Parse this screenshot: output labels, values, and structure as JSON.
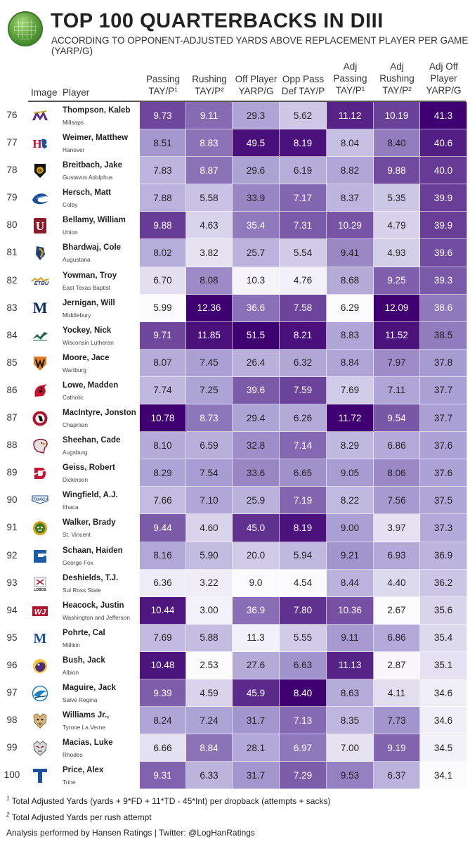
{
  "header": {
    "title": "TOP 100 QUARTERBACKS IN DIII",
    "subtitle": "ACCORDING TO OPPONENT-ADJUSTED YARDS ABOVE REPLACEMENT PLAYER PER GAME (YARP/G)"
  },
  "columns": {
    "image": "Image",
    "player": "Player",
    "passing": [
      "Passing",
      "TAY/P¹"
    ],
    "rushing": [
      "Rushing",
      "TAY/P²"
    ],
    "off_player": [
      "Off Player",
      "YARP/G"
    ],
    "opp_pass": [
      "Opp Pass",
      "Def TAY/P"
    ],
    "adj_passing": [
      "Adj",
      "Passing",
      "TAY/P¹"
    ],
    "adj_rushing": [
      "Adj",
      "Rushing",
      "TAY/P²"
    ],
    "adj_off": [
      "Adj Off",
      "Player",
      "YARP/G"
    ]
  },
  "footnotes": {
    "f1_mark": "1",
    "f1": "Total Adjusted Yards (yards + 9*FD + 11*TD - 45*Int) per dropback (attempts + sacks)",
    "f2_mark": "2",
    "f2": "Total Adjusted Yards per rush attempt",
    "credit": "Analysis performed by Hansen Ratings | Twitter: @LogHanRatings"
  },
  "colors": {
    "scale_low": "#fbfafd",
    "scale_high": "#3f0071",
    "text_dark": "#222222",
    "text_light": "#ffffff"
  },
  "chart_data": {
    "type": "table",
    "color_ranges": {
      "passing": [
        5.99,
        10.78
      ],
      "rushing": [
        2.53,
        12.36
      ],
      "off_player": [
        9.0,
        51.5
      ],
      "opp_pass": [
        4.54,
        8.4
      ],
      "adj_passing": [
        6.29,
        11.72
      ],
      "adj_rushing": [
        2.67,
        12.09
      ],
      "adj_off": [
        34.1,
        41.3
      ]
    },
    "rows": [
      {
        "rank": "76",
        "player": "Thompson, Kaleb",
        "school": "Millsaps",
        "logo_icon": "millsaps-logo-icon",
        "logo_color": "#5b2a86",
        "passing": "9.73",
        "rushing": "9.11",
        "off_player": "29.3",
        "opp_pass": "5.62",
        "adj_passing": "11.12",
        "adj_rushing": "10.19",
        "adj_off": "41.3"
      },
      {
        "rank": "77",
        "player": "Weimer, Matthew",
        "school": "Hanover",
        "logo_icon": "hanover-logo-icon",
        "logo_color": "#c8102e",
        "passing": "8.51",
        "rushing": "8.83",
        "off_player": "49.5",
        "opp_pass": "8.19",
        "adj_passing": "8.04",
        "adj_rushing": "8.40",
        "adj_off": "40.6"
      },
      {
        "rank": "78",
        "player": "Breitbach, Jake",
        "school": "Gustavus Adolphus",
        "logo_icon": "gustavus-logo-icon",
        "logo_color": "#111111",
        "passing": "7.83",
        "rushing": "8.87",
        "off_player": "29.6",
        "opp_pass": "6.19",
        "adj_passing": "8.82",
        "adj_rushing": "9.88",
        "adj_off": "40.0"
      },
      {
        "rank": "79",
        "player": "Hersch, Matt",
        "school": "Colby",
        "logo_icon": "colby-logo-icon",
        "logo_color": "#1b4f9c",
        "passing": "7.88",
        "rushing": "5.58",
        "off_player": "33.9",
        "opp_pass": "7.17",
        "adj_passing": "8.37",
        "adj_rushing": "5.35",
        "adj_off": "39.9"
      },
      {
        "rank": "80",
        "player": "Bellamy, William",
        "school": "Union",
        "logo_icon": "union-logo-icon",
        "logo_color": "#8a1c2b",
        "passing": "9.88",
        "rushing": "4.63",
        "off_player": "35.4",
        "opp_pass": "7.31",
        "adj_passing": "10.29",
        "adj_rushing": "4.79",
        "adj_off": "39.9"
      },
      {
        "rank": "81",
        "player": "Bhardwaj, Cole",
        "school": "Augustana",
        "logo_icon": "augustana-logo-icon",
        "logo_color": "#1d3f7a",
        "passing": "8.02",
        "rushing": "3.82",
        "off_player": "25.7",
        "opp_pass": "5.54",
        "adj_passing": "9.41",
        "adj_rushing": "4.93",
        "adj_off": "39.6"
      },
      {
        "rank": "82",
        "player": "Yowman, Troy",
        "school": "East Texas Baptist",
        "logo_icon": "etbu-logo-icon",
        "logo_color": "#1d2c6b",
        "passing": "6.70",
        "rushing": "8.08",
        "off_player": "10.3",
        "opp_pass": "4.76",
        "adj_passing": "8.68",
        "adj_rushing": "9.25",
        "adj_off": "39.3"
      },
      {
        "rank": "83",
        "player": "Jernigan, Will",
        "school": "Middlebury",
        "logo_icon": "middlebury-logo-icon",
        "logo_color": "#0d2c6c",
        "passing": "5.99",
        "rushing": "12.36",
        "off_player": "36.6",
        "opp_pass": "7.58",
        "adj_passing": "6.29",
        "adj_rushing": "12.09",
        "adj_off": "38.6"
      },
      {
        "rank": "84",
        "player": "Yockey, Nick",
        "school": "Wisconsin Lutheran",
        "logo_icon": "wisconsin-lutheran-logo-icon",
        "logo_color": "#1e6b45",
        "passing": "9.71",
        "rushing": "11.85",
        "off_player": "51.5",
        "opp_pass": "8.21",
        "adj_passing": "8.83",
        "adj_rushing": "11.52",
        "adj_off": "38.5"
      },
      {
        "rank": "85",
        "player": "Moore, Jace",
        "school": "Wartburg",
        "logo_icon": "wartburg-logo-icon",
        "logo_color": "#e07b24",
        "passing": "8.07",
        "rushing": "7.45",
        "off_player": "26.4",
        "opp_pass": "6.32",
        "adj_passing": "8.84",
        "adj_rushing": "7.97",
        "adj_off": "37.8"
      },
      {
        "rank": "86",
        "player": "Lowe, Madden",
        "school": "Catholic",
        "logo_icon": "catholic-logo-icon",
        "logo_color": "#c8102e",
        "passing": "7.74",
        "rushing": "7.25",
        "off_player": "39.6",
        "opp_pass": "7.59",
        "adj_passing": "7.69",
        "adj_rushing": "7.11",
        "adj_off": "37.7"
      },
      {
        "rank": "87",
        "player": "MacIntyre, Jonston",
        "school": "Chapman",
        "logo_icon": "chapman-logo-icon",
        "logo_color": "#b3122e",
        "passing": "10.78",
        "rushing": "8.73",
        "off_player": "29.4",
        "opp_pass": "6.26",
        "adj_passing": "11.72",
        "adj_rushing": "9.54",
        "adj_off": "37.7"
      },
      {
        "rank": "88",
        "player": "Sheehan, Cade",
        "school": "Augsburg",
        "logo_icon": "augsburg-logo-icon",
        "logo_color": "#8b1a2b",
        "passing": "8.10",
        "rushing": "6.59",
        "off_player": "32.8",
        "opp_pass": "7.14",
        "adj_passing": "8.29",
        "adj_rushing": "6.86",
        "adj_off": "37.6"
      },
      {
        "rank": "89",
        "player": "Geiss, Robert",
        "school": "Dickinson",
        "logo_icon": "dickinson-logo-icon",
        "logo_color": "#d0102f",
        "passing": "8.29",
        "rushing": "7.54",
        "off_player": "33.6",
        "opp_pass": "6.65",
        "adj_passing": "9.05",
        "adj_rushing": "8.06",
        "adj_off": "37.6"
      },
      {
        "rank": "90",
        "player": "Wingfield, A.J.",
        "school": "Ithaca",
        "logo_icon": "ithaca-logo-icon",
        "logo_color": "#1d4fa0",
        "passing": "7.66",
        "rushing": "7.10",
        "off_player": "25.9",
        "opp_pass": "7.19",
        "adj_passing": "8.22",
        "adj_rushing": "7.56",
        "adj_off": "37.5"
      },
      {
        "rank": "91",
        "player": "Walker, Brady",
        "school": "St. Vincent",
        "logo_icon": "st-vincent-logo-icon",
        "logo_color": "#3d7a2a",
        "passing": "9.44",
        "rushing": "4.60",
        "off_player": "45.0",
        "opp_pass": "8.19",
        "adj_passing": "9.00",
        "adj_rushing": "3.97",
        "adj_off": "37.3"
      },
      {
        "rank": "92",
        "player": "Schaan, Haiden",
        "school": "George Fox",
        "logo_icon": "george-fox-logo-icon",
        "logo_color": "#1f5aa6",
        "passing": "8.16",
        "rushing": "5.90",
        "off_player": "20.0",
        "opp_pass": "5.94",
        "adj_passing": "9.21",
        "adj_rushing": "6.93",
        "adj_off": "36.9"
      },
      {
        "rank": "93",
        "player": "Deshields, T.J.",
        "school": "Sul Ross State",
        "logo_icon": "sul-ross-logo-icon",
        "logo_color": "#b3122e",
        "passing": "6.36",
        "rushing": "3.22",
        "off_player": "9.0",
        "opp_pass": "4.54",
        "adj_passing": "8.44",
        "adj_rushing": "4.40",
        "adj_off": "36.2"
      },
      {
        "rank": "94",
        "player": "Heacock, Justin",
        "school": "Washington and Jefferson",
        "logo_icon": "wj-logo-icon",
        "logo_color": "#b3122e",
        "passing": "10.44",
        "rushing": "3.00",
        "off_player": "36.9",
        "opp_pass": "7.80",
        "adj_passing": "10.36",
        "adj_rushing": "2.67",
        "adj_off": "35.6"
      },
      {
        "rank": "95",
        "player": "Pohrte, Cal",
        "school": "Millikin",
        "logo_icon": "millikin-logo-icon",
        "logo_color": "#1d4fa0",
        "passing": "7.69",
        "rushing": "5.88",
        "off_player": "11.3",
        "opp_pass": "5.55",
        "adj_passing": "9.11",
        "adj_rushing": "6.86",
        "adj_off": "35.4"
      },
      {
        "rank": "96",
        "player": "Bush, Jack",
        "school": "Albion",
        "logo_icon": "albion-logo-icon",
        "logo_color": "#4b2a7a",
        "passing": "10.48",
        "rushing": "2.53",
        "off_player": "27.6",
        "opp_pass": "6.63",
        "adj_passing": "11.13",
        "adj_rushing": "2.87",
        "adj_off": "35.1"
      },
      {
        "rank": "97",
        "player": "Maguire, Jack",
        "school": "Salve Regina",
        "logo_icon": "salve-regina-logo-icon",
        "logo_color": "#1f7fbf",
        "passing": "9.39",
        "rushing": "4.59",
        "off_player": "45.9",
        "opp_pass": "8.40",
        "adj_passing": "8.63",
        "adj_rushing": "4.11",
        "adj_off": "34.6"
      },
      {
        "rank": "98",
        "player": "Williams Jr.,",
        "school": "Tyrone La Verne",
        "logo_icon": "la-verne-logo-icon",
        "logo_color": "#8a6a3a",
        "passing": "8.24",
        "rushing": "7.24",
        "off_player": "31.7",
        "opp_pass": "7.13",
        "adj_passing": "8.35",
        "adj_rushing": "7.73",
        "adj_off": "34.6"
      },
      {
        "rank": "99",
        "player": "Macias, Luke",
        "school": "Rhodes",
        "logo_icon": "rhodes-logo-icon",
        "logo_color": "#7a2030",
        "passing": "6.66",
        "rushing": "8.84",
        "off_player": "28.1",
        "opp_pass": "6.97",
        "adj_passing": "7.00",
        "adj_rushing": "9.19",
        "adj_off": "34.5"
      },
      {
        "rank": "100",
        "player": "Price, Alex",
        "school": "Trine",
        "logo_icon": "trine-logo-icon",
        "logo_color": "#1d4fa0",
        "passing": "9.31",
        "rushing": "6.33",
        "off_player": "31.7",
        "opp_pass": "7.29",
        "adj_passing": "9.53",
        "adj_rushing": "6.37",
        "adj_off": "34.1"
      }
    ]
  }
}
